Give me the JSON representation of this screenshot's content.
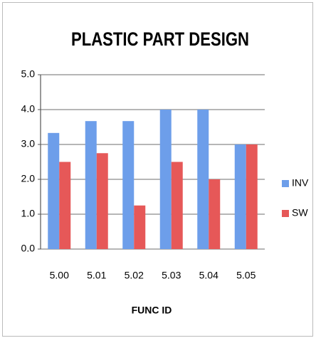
{
  "chart_data": {
    "type": "bar",
    "title": "PLASTIC PART DESIGN",
    "x_label": "FUNC ID",
    "categories": [
      "5.00",
      "5.01",
      "5.02",
      "5.03",
      "5.04",
      "5.05"
    ],
    "series": [
      {
        "name": "INV",
        "color": "#6d9eea",
        "values": [
          3.33,
          3.67,
          3.67,
          4.0,
          4.0,
          3.0
        ]
      },
      {
        "name": "SW",
        "color": "#e65858",
        "values": [
          2.5,
          2.75,
          1.25,
          2.5,
          2.0,
          3.0
        ]
      }
    ],
    "ylim": [
      0,
      5
    ],
    "yticks": [
      {
        "value": 0,
        "label": "0.0"
      },
      {
        "value": 1,
        "label": "1.0"
      },
      {
        "value": 2,
        "label": "2.0"
      },
      {
        "value": 3,
        "label": "3.0"
      },
      {
        "value": 4,
        "label": "4.0"
      },
      {
        "value": 5,
        "label": "5.0"
      }
    ],
    "grid": true,
    "legend": "right"
  }
}
